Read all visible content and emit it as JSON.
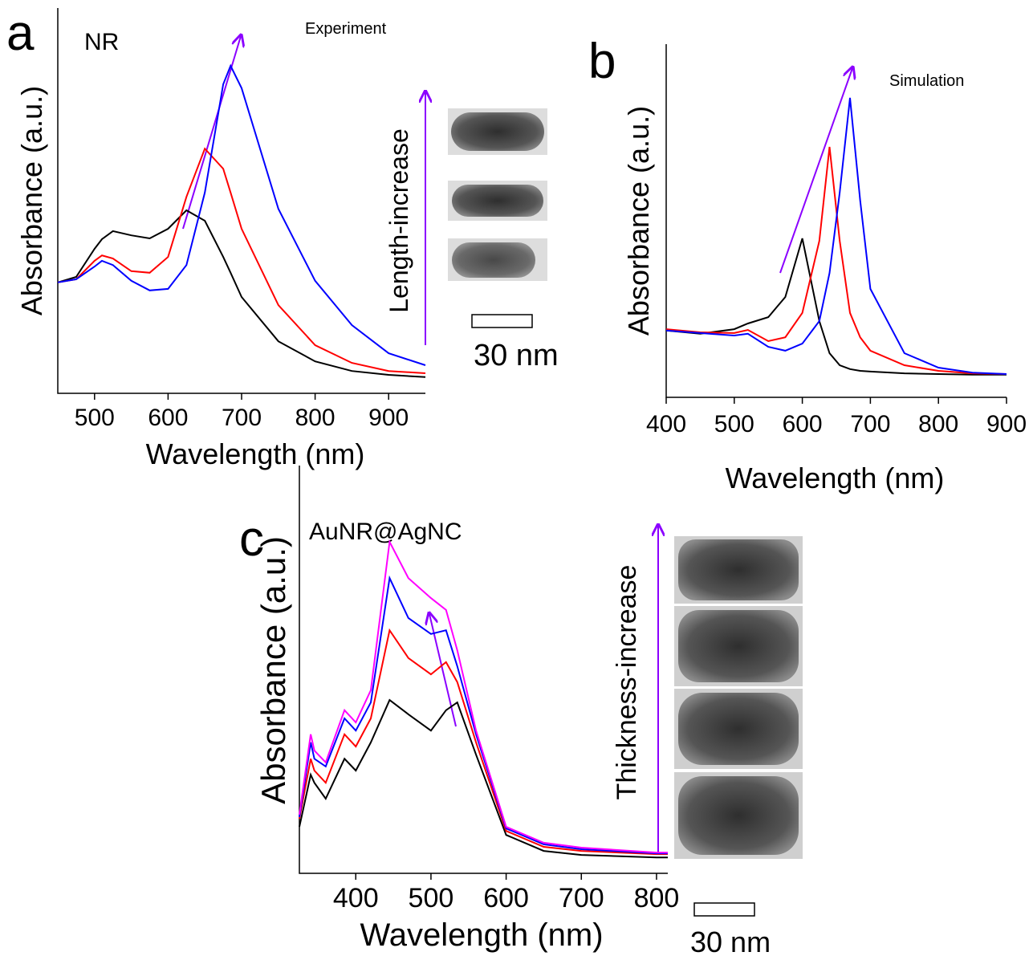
{
  "chart_data": [
    {
      "type": "line",
      "panel_label": "a",
      "label": "NR",
      "note": "Experiment",
      "arrow_label": "Length-increase",
      "scale_bar": "30 nm",
      "xlabel": "Wavelength (nm)",
      "ylabel": "Absorbance (a.u.)",
      "xlim": [
        450,
        950
      ],
      "xticks": [
        500,
        600,
        700,
        800,
        900
      ],
      "ylim": [
        0,
        100
      ],
      "x": [
        450,
        475,
        500,
        510,
        525,
        550,
        575,
        600,
        625,
        650,
        675,
        685,
        700,
        750,
        800,
        850,
        900,
        950
      ],
      "series": [
        {
          "color": "#000000",
          "values": [
            28.8,
            30.2,
            37.5,
            40,
            42.1,
            41,
            40.2,
            42.7,
            47.5,
            44.8,
            35.4,
            31.3,
            25,
            13.5,
            8.3,
            5.8,
            4.8,
            4.2
          ]
        },
        {
          "color": "#ff0000",
          "values": [
            28.8,
            29.6,
            34.4,
            35.8,
            35,
            31.7,
            31.3,
            35.4,
            51,
            63.5,
            58.3,
            52.1,
            42.7,
            22.9,
            12.5,
            7.9,
            5.8,
            5.2
          ]
        },
        {
          "color": "#0000ff",
          "values": [
            28.8,
            29.6,
            32.9,
            34.4,
            33.3,
            29.2,
            26.7,
            27.1,
            33.3,
            52.1,
            80.2,
            85,
            79.2,
            47.9,
            29.2,
            17.7,
            10.4,
            7.3
          ]
        }
      ]
    },
    {
      "type": "line",
      "panel_label": "b",
      "note": "Simulation",
      "xlabel": "Wavelength (nm)",
      "ylabel": "Absorbance (a.u.)",
      "xlim": [
        400,
        900
      ],
      "xticks": [
        400,
        500,
        600,
        700,
        800,
        900
      ],
      "ylim": [
        0,
        100
      ],
      "x": [
        400,
        450,
        500,
        520,
        550,
        575,
        600,
        625,
        640,
        655,
        670,
        685,
        700,
        750,
        800,
        850,
        900
      ],
      "series": [
        {
          "color": "#000000",
          "values": [
            18.9,
            18,
            19.3,
            20.9,
            22.7,
            28.4,
            45,
            21.6,
            12.5,
            9.1,
            8,
            7.5,
            7.3,
            6.8,
            6.6,
            6.4,
            6.4
          ]
        },
        {
          "color": "#ff0000",
          "values": [
            19.3,
            18.4,
            18.2,
            19.1,
            15.9,
            17,
            23.9,
            44.3,
            70.9,
            44.3,
            23.9,
            17,
            13.2,
            9.1,
            7.5,
            6.8,
            6.6
          ]
        },
        {
          "color": "#0000ff",
          "values": [
            18.9,
            18.2,
            17.5,
            18,
            14.3,
            13.2,
            15.2,
            21.6,
            35.2,
            58,
            84.8,
            55.7,
            30.7,
            12.5,
            8.4,
            7,
            6.6
          ]
        }
      ]
    },
    {
      "type": "line",
      "panel_label": "c",
      "label": "AuNR@AgNC",
      "arrow_label": "Thickness-increase",
      "scale_bar": "30 nm",
      "xlabel": "Wavelength (nm)",
      "ylabel": "Absorbance (a.u.)",
      "xlim": [
        325,
        815
      ],
      "xticks": [
        400,
        500,
        600,
        700,
        800
      ],
      "ylim": [
        0,
        100
      ],
      "x": [
        325,
        340,
        345,
        360,
        385,
        400,
        420,
        445,
        470,
        500,
        520,
        535,
        560,
        600,
        650,
        700,
        800,
        815
      ],
      "series": [
        {
          "color": "#000000",
          "values": [
            11.4,
            24.2,
            22.2,
            18.3,
            28.1,
            25.2,
            32.1,
            42.5,
            39,
            35,
            40,
            41.9,
            29.1,
            9.4,
            5.5,
            4.5,
            3.9,
            3.9
          ]
        },
        {
          "color": "#ff0000",
          "values": [
            13.4,
            28.1,
            25.2,
            22.2,
            34.1,
            31.1,
            38,
            59.6,
            52.8,
            48.8,
            51.8,
            46.9,
            32.1,
            10.4,
            6.5,
            5.5,
            4.7,
            4.7
          ]
        },
        {
          "color": "#0000ff",
          "values": [
            13.8,
            32.1,
            28.1,
            26.2,
            38,
            35,
            41.9,
            72.4,
            62.6,
            58.7,
            59.6,
            50.8,
            34.1,
            11,
            7.1,
            5.9,
            4.9,
            4.9
          ]
        },
        {
          "color": "#ff00ff",
          "values": [
            14.4,
            34.1,
            30.1,
            27.2,
            40,
            37,
            44.9,
            81.3,
            72.4,
            67.5,
            64.6,
            54.7,
            35,
            11.4,
            7.5,
            6.3,
            5.1,
            5.1
          ]
        }
      ]
    }
  ]
}
